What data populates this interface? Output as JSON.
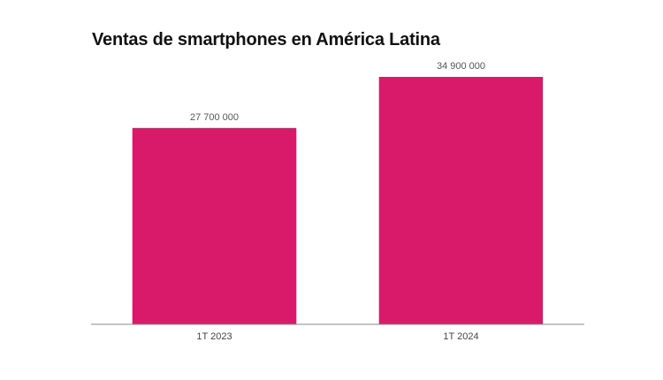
{
  "chart_data": {
    "type": "bar",
    "title": "Ventas de smartphones en América Latina",
    "xlabel": "",
    "ylabel": "",
    "categories": [
      "1T 2023",
      "1T 2024"
    ],
    "values": [
      27700000,
      34900000
    ],
    "data_labels": [
      "27 700 000",
      "34 900 000"
    ],
    "ylim": [
      0,
      34900000
    ],
    "grid": false,
    "legend": "none",
    "colors": {
      "bar": "#d91a6a",
      "axis": "#888888"
    }
  }
}
